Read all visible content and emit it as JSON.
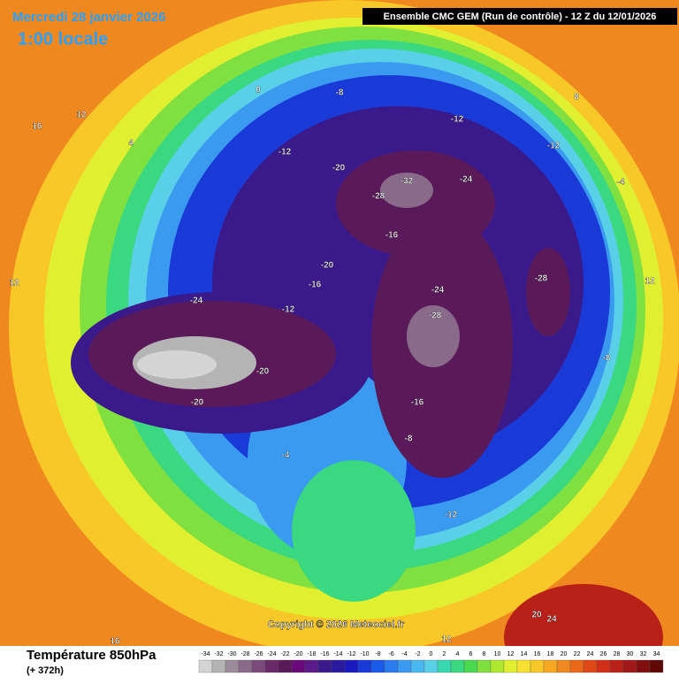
{
  "header": {
    "date": "Mercredi 28 janvier 2026",
    "local_time": "1:00 locale",
    "model": "Ensemble CMC GEM  (Run de contrôle)  -  12 Z du 12/01/2026"
  },
  "map": {
    "contour_labels": [
      -24,
      -20,
      -12,
      -8,
      -12,
      -12,
      -28,
      -32,
      -24,
      -20,
      -16,
      -20,
      -28,
      -24,
      -20,
      -16,
      -8,
      -12,
      -4,
      0,
      4,
      12,
      16,
      12,
      8,
      20,
      24,
      16,
      12,
      -4,
      -8,
      12,
      -16,
      -12,
      -28
    ],
    "copyright": "Copyright © 2026 Meteociel.fr"
  },
  "legend": {
    "title": "Température 850hPa",
    "lead": "(+ 372h)",
    "ticks": [
      -34,
      -32,
      -30,
      -28,
      -26,
      -24,
      -22,
      -20,
      -18,
      -16,
      -14,
      -12,
      -10,
      -8,
      -6,
      -4,
      -2,
      0,
      2,
      4,
      6,
      8,
      10,
      12,
      14,
      16,
      18,
      20,
      22,
      24,
      26,
      28,
      30,
      32,
      34
    ],
    "colors": [
      "#d4d4d4",
      "#b4b4b4",
      "#9a8a9a",
      "#8a6a8a",
      "#7a4a7a",
      "#6a2a6a",
      "#5a1a5a",
      "#6a0a7a",
      "#5a1a8a",
      "#3a1a8a",
      "#2a1aa0",
      "#1a1ac0",
      "#1a3ad8",
      "#1a5ae8",
      "#2a7af0",
      "#3a9af0",
      "#4ab8f0",
      "#5ad0e8",
      "#3ad8b0",
      "#3ad880",
      "#4ad850",
      "#80e040",
      "#b0e830",
      "#e0f030",
      "#f8e030",
      "#f8c828",
      "#f8a820",
      "#f08820",
      "#e86818",
      "#e04818",
      "#d03018",
      "#b82018",
      "#a01818",
      "#801010",
      "#600808"
    ]
  }
}
